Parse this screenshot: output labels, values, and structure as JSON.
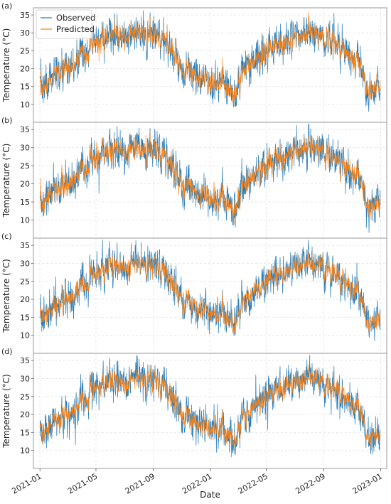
{
  "colors": {
    "observed": "#1f77b4",
    "predicted": "#ff7f0e",
    "grid": "#e6e6e6",
    "frame": "#9a9a9a"
  },
  "xlabel": "Date",
  "chart_data": {
    "type": "line",
    "shared_x_axis": true,
    "x_ticks": [
      "2021-01",
      "2021-05",
      "2021-09",
      "2022-01",
      "2022-05",
      "2022-09",
      "2023-01"
    ],
    "x_range": [
      "2020-12-18",
      "2023-01-14"
    ],
    "grid": true,
    "legend_position": "top-left (panel a)",
    "panels": [
      {
        "label": "(a)",
        "ylabel": "Temperature (°C)",
        "ylim": [
          5,
          37
        ],
        "yticks": [
          10,
          15,
          20,
          25,
          30,
          35
        ],
        "series": [
          {
            "name": "Observed",
            "noise": 2.7
          },
          {
            "name": "Predicted",
            "noise": 2.1
          }
        ]
      },
      {
        "label": "(b)",
        "ylabel": "Temperature (°C)",
        "ylim": [
          5,
          37
        ],
        "yticks": [
          10,
          15,
          20,
          25,
          30,
          35
        ],
        "series": [
          {
            "name": "Observed",
            "noise": 2.7
          },
          {
            "name": "Predicted",
            "noise": 2.0
          }
        ]
      },
      {
        "label": "(c)",
        "ylabel": "Temperature (°C)",
        "ylim": [
          5,
          37
        ],
        "yticks": [
          10,
          15,
          20,
          25,
          30,
          35
        ],
        "series": [
          {
            "name": "Observed",
            "noise": 2.7
          },
          {
            "name": "Predicted",
            "noise": 1.7
          }
        ]
      },
      {
        "label": "(d)",
        "ylabel": "Temperature (°C)",
        "ylim": [
          5,
          37
        ],
        "yticks": [
          10,
          15,
          20,
          25,
          30,
          35
        ],
        "series": [
          {
            "name": "Observed",
            "noise": 2.8
          },
          {
            "name": "Predicted",
            "noise": 1.6
          }
        ]
      }
    ],
    "trend_points": [
      {
        "date": "2021-01-01",
        "value": 14
      },
      {
        "date": "2021-02-01",
        "value": 18
      },
      {
        "date": "2021-03-01",
        "value": 20
      },
      {
        "date": "2021-04-01",
        "value": 24
      },
      {
        "date": "2021-05-01",
        "value": 27
      },
      {
        "date": "2021-06-01",
        "value": 29
      },
      {
        "date": "2021-07-01",
        "value": 29
      },
      {
        "date": "2021-08-01",
        "value": 29.5
      },
      {
        "date": "2021-09-01",
        "value": 29
      },
      {
        "date": "2021-10-01",
        "value": 27
      },
      {
        "date": "2021-11-01",
        "value": 21
      },
      {
        "date": "2021-12-01",
        "value": 18
      },
      {
        "date": "2022-01-01",
        "value": 17
      },
      {
        "date": "2022-02-01",
        "value": 16
      },
      {
        "date": "2022-02-20",
        "value": 12
      },
      {
        "date": "2022-03-15",
        "value": 20
      },
      {
        "date": "2022-04-01",
        "value": 22
      },
      {
        "date": "2022-05-01",
        "value": 25
      },
      {
        "date": "2022-06-01",
        "value": 27
      },
      {
        "date": "2022-07-01",
        "value": 28
      },
      {
        "date": "2022-08-01",
        "value": 30
      },
      {
        "date": "2022-09-01",
        "value": 29
      },
      {
        "date": "2022-10-01",
        "value": 26
      },
      {
        "date": "2022-11-01",
        "value": 23
      },
      {
        "date": "2022-11-20",
        "value": 21
      },
      {
        "date": "2022-12-01",
        "value": 15
      },
      {
        "date": "2022-12-31",
        "value": 14
      }
    ]
  }
}
